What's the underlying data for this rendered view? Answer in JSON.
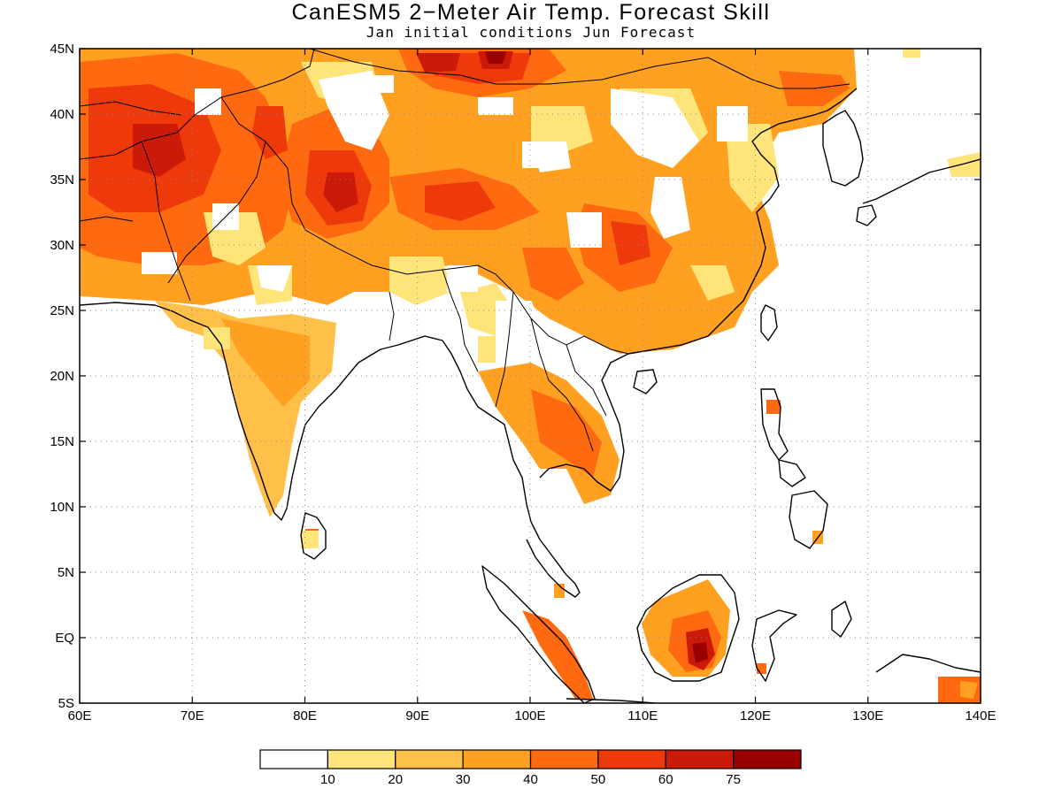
{
  "title": "CanESM5 2−Meter Air Temp. Forecast Skill",
  "subtitle": "Jan initial conditions   Jun Forecast",
  "map": {
    "lon_range": [
      60,
      140
    ],
    "lat_range": [
      -5,
      45
    ],
    "lon_ticks": [
      {
        "value": 60,
        "label": "60E"
      },
      {
        "value": 70,
        "label": "70E"
      },
      {
        "value": 80,
        "label": "80E"
      },
      {
        "value": 90,
        "label": "90E"
      },
      {
        "value": 100,
        "label": "100E"
      },
      {
        "value": 110,
        "label": "110E"
      },
      {
        "value": 120,
        "label": "120E"
      },
      {
        "value": 130,
        "label": "130E"
      },
      {
        "value": 140,
        "label": "140E"
      }
    ],
    "lat_ticks": [
      {
        "value": 45,
        "label": "45N"
      },
      {
        "value": 40,
        "label": "40N"
      },
      {
        "value": 35,
        "label": "35N"
      },
      {
        "value": 30,
        "label": "30N"
      },
      {
        "value": 25,
        "label": "25N"
      },
      {
        "value": 20,
        "label": "20N"
      },
      {
        "value": 15,
        "label": "15N"
      },
      {
        "value": 10,
        "label": "10N"
      },
      {
        "value": 5,
        "label": "5N"
      },
      {
        "value": 0,
        "label": "EQ"
      },
      {
        "value": -5,
        "label": "5S"
      }
    ],
    "grid": true
  },
  "colorbar": {
    "bins": [
      {
        "color": "#ffffff"
      },
      {
        "color": "#ffe47a"
      },
      {
        "color": "#ffc04a"
      },
      {
        "color": "#ffa020"
      },
      {
        "color": "#ff6a10"
      },
      {
        "color": "#ee3a0a"
      },
      {
        "color": "#cc1a08"
      },
      {
        "color": "#990000"
      }
    ],
    "boundary_labels": [
      "10",
      "20",
      "30",
      "40",
      "50",
      "60",
      "75"
    ]
  }
}
